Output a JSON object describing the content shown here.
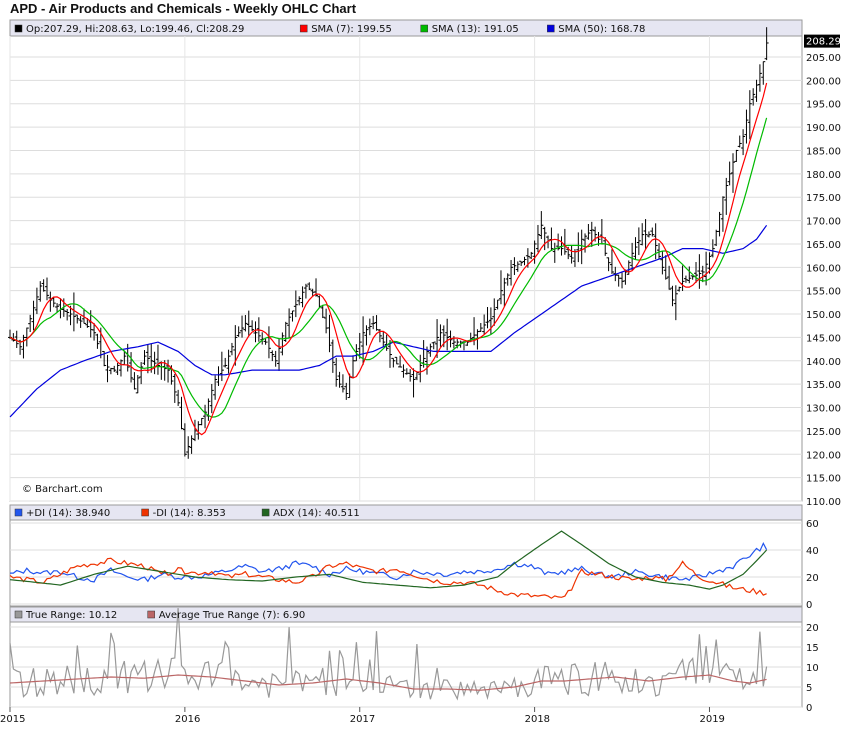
{
  "title": "APD - Air Products and Chemicals - Weekly OHLC Chart",
  "watermark": "© Barchart.com",
  "colors": {
    "price": "#000000",
    "sma7": "#ff0000",
    "sma13": "#00bb00",
    "sma50": "#0000dd",
    "plus_di": "#2255ee",
    "minus_di": "#ee3300",
    "adx": "#226622",
    "true_range": "#999999",
    "atr": "#bb6666",
    "panel_header": "#e6e6f2"
  },
  "chart_data": [
    {
      "type": "ohlc",
      "panel": "price",
      "legend": [
        {
          "label": "Op:207.29, Hi:208.63, Lo:199.46, Cl:208.29",
          "color": "#000000"
        },
        {
          "label": "SMA (7): 199.55",
          "color": "#ff0000"
        },
        {
          "label": "SMA (13): 191.05",
          "color": "#00bb00"
        },
        {
          "label": "SMA (50): 168.78",
          "color": "#0000dd"
        }
      ],
      "last_value_label": "208.29",
      "y_ticks": [
        "205.00",
        "200.00",
        "195.00",
        "190.00",
        "185.00",
        "180.00",
        "175.00",
        "170.00",
        "165.00",
        "160.00",
        "155.00",
        "150.00",
        "145.00",
        "140.00",
        "135.00",
        "130.00",
        "125.00",
        "120.00",
        "115.00",
        "110.00"
      ],
      "ylim": [
        110,
        209
      ],
      "x_ticks": [
        "2015",
        "2016",
        "2017",
        "2018",
        "2019"
      ],
      "x_tick_weeks": [
        0,
        52,
        104,
        156,
        208
      ],
      "weeks_total": 226,
      "close_anchors": [
        [
          0,
          145
        ],
        [
          3,
          143
        ],
        [
          6,
          149
        ],
        [
          9,
          156
        ],
        [
          12,
          153
        ],
        [
          15,
          151
        ],
        [
          18,
          150
        ],
        [
          22,
          148
        ],
        [
          25,
          146
        ],
        [
          28,
          139
        ],
        [
          31,
          138
        ],
        [
          34,
          141
        ],
        [
          37,
          134
        ],
        [
          40,
          141
        ],
        [
          44,
          139
        ],
        [
          47,
          138
        ],
        [
          50,
          131
        ],
        [
          52,
          120
        ],
        [
          55,
          125
        ],
        [
          58,
          129
        ],
        [
          61,
          136
        ],
        [
          64,
          139
        ],
        [
          67,
          145
        ],
        [
          70,
          148
        ],
        [
          73,
          146
        ],
        [
          76,
          144
        ],
        [
          79,
          140
        ],
        [
          82,
          148
        ],
        [
          85,
          152
        ],
        [
          88,
          156
        ],
        [
          91,
          154
        ],
        [
          94,
          147
        ],
        [
          97,
          136
        ],
        [
          100,
          133
        ],
        [
          102,
          140
        ],
        [
          105,
          146
        ],
        [
          108,
          148
        ],
        [
          111,
          144
        ],
        [
          114,
          140
        ],
        [
          117,
          138
        ],
        [
          120,
          136
        ],
        [
          124,
          142
        ],
        [
          128,
          146
        ],
        [
          132,
          144
        ],
        [
          136,
          144
        ],
        [
          140,
          147
        ],
        [
          143,
          149
        ],
        [
          146,
          155
        ],
        [
          149,
          160
        ],
        [
          152,
          161
        ],
        [
          155,
          163
        ],
        [
          158,
          169
        ],
        [
          161,
          164
        ],
        [
          164,
          164
        ],
        [
          167,
          162
        ],
        [
          170,
          166
        ],
        [
          173,
          168
        ],
        [
          176,
          165
        ],
        [
          179,
          159
        ],
        [
          182,
          157
        ],
        [
          185,
          163
        ],
        [
          188,
          167
        ],
        [
          191,
          167
        ],
        [
          194,
          160
        ],
        [
          197,
          153
        ],
        [
          200,
          157
        ],
        [
          203,
          158
        ],
        [
          206,
          159
        ],
        [
          209,
          164
        ],
        [
          212,
          175
        ],
        [
          214,
          180
        ],
        [
          216,
          185
        ],
        [
          218,
          188
        ],
        [
          220,
          195
        ],
        [
          222,
          199
        ],
        [
          224,
          204
        ],
        [
          225,
          208
        ]
      ],
      "sma50_anchors": [
        [
          0,
          128
        ],
        [
          8,
          134
        ],
        [
          15,
          138
        ],
        [
          22,
          140
        ],
        [
          30,
          142
        ],
        [
          38,
          143
        ],
        [
          44,
          144
        ],
        [
          50,
          142
        ],
        [
          55,
          139
        ],
        [
          60,
          137
        ],
        [
          64,
          137
        ],
        [
          72,
          138
        ],
        [
          80,
          138
        ],
        [
          86,
          138
        ],
        [
          92,
          139
        ],
        [
          97,
          141
        ],
        [
          102,
          141
        ],
        [
          108,
          142
        ],
        [
          114,
          144
        ],
        [
          120,
          143
        ],
        [
          126,
          142
        ],
        [
          132,
          142
        ],
        [
          138,
          142
        ],
        [
          143,
          142
        ],
        [
          150,
          146
        ],
        [
          156,
          149
        ],
        [
          162,
          152
        ],
        [
          170,
          156
        ],
        [
          178,
          158
        ],
        [
          186,
          160
        ],
        [
          194,
          162
        ],
        [
          200,
          164
        ],
        [
          206,
          164
        ],
        [
          212,
          163
        ],
        [
          218,
          164
        ],
        [
          222,
          166
        ],
        [
          225,
          169
        ]
      ]
    },
    {
      "type": "line",
      "panel": "dmi",
      "legend": [
        {
          "label": "+DI (14): 38.940",
          "color": "#2255ee"
        },
        {
          "label": "-DI (14): 8.353",
          "color": "#ee3300"
        },
        {
          "label": "ADX (14): 40.511",
          "color": "#226622"
        }
      ],
      "y_ticks": [
        "60",
        "40",
        "20",
        "0"
      ],
      "ylim": [
        0,
        65
      ],
      "series": [
        {
          "name": "+DI (14)",
          "points": [
            [
              0,
              22
            ],
            [
              5,
              25
            ],
            [
              10,
              23
            ],
            [
              15,
              24
            ],
            [
              20,
              20
            ],
            [
              25,
              18
            ],
            [
              30,
              25
            ],
            [
              35,
              20
            ],
            [
              40,
              18
            ],
            [
              45,
              22
            ],
            [
              50,
              20
            ],
            [
              55,
              20
            ],
            [
              60,
              22
            ],
            [
              65,
              25
            ],
            [
              70,
              28
            ],
            [
              75,
              24
            ],
            [
              80,
              26
            ],
            [
              85,
              30
            ],
            [
              90,
              28
            ],
            [
              95,
              22
            ],
            [
              100,
              26
            ],
            [
              105,
              24
            ],
            [
              110,
              22
            ],
            [
              115,
              20
            ],
            [
              120,
              24
            ],
            [
              125,
              23
            ],
            [
              130,
              22
            ],
            [
              135,
              24
            ],
            [
              140,
              24
            ],
            [
              145,
              26
            ],
            [
              150,
              30
            ],
            [
              155,
              28
            ],
            [
              160,
              22
            ],
            [
              165,
              24
            ],
            [
              170,
              26
            ],
            [
              175,
              22
            ],
            [
              180,
              20
            ],
            [
              185,
              24
            ],
            [
              190,
              22
            ],
            [
              195,
              20
            ],
            [
              200,
              18
            ],
            [
              205,
              20
            ],
            [
              210,
              24
            ],
            [
              215,
              28
            ],
            [
              220,
              36
            ],
            [
              224,
              43
            ],
            [
              225,
              39
            ]
          ]
        },
        {
          "name": "-DI (14)",
          "points": [
            [
              0,
              20
            ],
            [
              5,
              18
            ],
            [
              10,
              16
            ],
            [
              15,
              22
            ],
            [
              20,
              28
            ],
            [
              25,
              30
            ],
            [
              30,
              32
            ],
            [
              35,
              30
            ],
            [
              40,
              28
            ],
            [
              45,
              22
            ],
            [
              50,
              25
            ],
            [
              55,
              23
            ],
            [
              60,
              24
            ],
            [
              65,
              20
            ],
            [
              70,
              22
            ],
            [
              75,
              20
            ],
            [
              80,
              18
            ],
            [
              85,
              16
            ],
            [
              90,
              20
            ],
            [
              95,
              28
            ],
            [
              100,
              30
            ],
            [
              105,
              26
            ],
            [
              110,
              24
            ],
            [
              115,
              26
            ],
            [
              120,
              22
            ],
            [
              125,
              18
            ],
            [
              130,
              16
            ],
            [
              135,
              16
            ],
            [
              140,
              14
            ],
            [
              145,
              10
            ],
            [
              150,
              7
            ],
            [
              155,
              6
            ],
            [
              160,
              5
            ],
            [
              165,
              4
            ],
            [
              170,
              24
            ],
            [
              175,
              22
            ],
            [
              180,
              20
            ],
            [
              185,
              18
            ],
            [
              190,
              20
            ],
            [
              195,
              18
            ],
            [
              200,
              30
            ],
            [
              205,
              20
            ],
            [
              210,
              16
            ],
            [
              215,
              12
            ],
            [
              220,
              10
            ],
            [
              225,
              8
            ]
          ]
        },
        {
          "name": "ADX (14)",
          "points": [
            [
              0,
              18
            ],
            [
              8,
              16
            ],
            [
              15,
              14
            ],
            [
              25,
              22
            ],
            [
              35,
              28
            ],
            [
              45,
              24
            ],
            [
              55,
              20
            ],
            [
              65,
              18
            ],
            [
              75,
              17
            ],
            [
              85,
              20
            ],
            [
              95,
              22
            ],
            [
              105,
              16
            ],
            [
              115,
              14
            ],
            [
              125,
              12
            ],
            [
              135,
              14
            ],
            [
              145,
              20
            ],
            [
              150,
              30
            ],
            [
              158,
              44
            ],
            [
              164,
              54
            ],
            [
              170,
              44
            ],
            [
              178,
              30
            ],
            [
              186,
              20
            ],
            [
              194,
              16
            ],
            [
              202,
              14
            ],
            [
              208,
              11
            ],
            [
              212,
              14
            ],
            [
              218,
              22
            ],
            [
              222,
              32
            ],
            [
              225,
              40
            ]
          ]
        }
      ]
    },
    {
      "type": "line",
      "panel": "true_range",
      "legend": [
        {
          "label": "True Range: 10.12",
          "color": "#999999"
        },
        {
          "label": "Average True Range (7): 6.90",
          "color": "#bb6666"
        }
      ],
      "y_ticks": [
        "20",
        "15",
        "10",
        "5",
        "0"
      ],
      "ylim": [
        0,
        20
      ],
      "series": [
        {
          "name": "Average True Range (7)",
          "points": [
            [
              0,
              6
            ],
            [
              10,
              6.5
            ],
            [
              20,
              7
            ],
            [
              30,
              7.5
            ],
            [
              40,
              7.2
            ],
            [
              50,
              8
            ],
            [
              60,
              7.5
            ],
            [
              70,
              6.5
            ],
            [
              80,
              5.5
            ],
            [
              90,
              6
            ],
            [
              100,
              7
            ],
            [
              110,
              6
            ],
            [
              120,
              4.5
            ],
            [
              130,
              4.5
            ],
            [
              140,
              4.2
            ],
            [
              150,
              5
            ],
            [
              158,
              6.5
            ],
            [
              165,
              6.5
            ],
            [
              172,
              7
            ],
            [
              180,
              7.5
            ],
            [
              190,
              6.5
            ],
            [
              200,
              7.5
            ],
            [
              208,
              8
            ],
            [
              215,
              6.5
            ],
            [
              220,
              6
            ],
            [
              225,
              6.9
            ]
          ]
        }
      ]
    }
  ]
}
